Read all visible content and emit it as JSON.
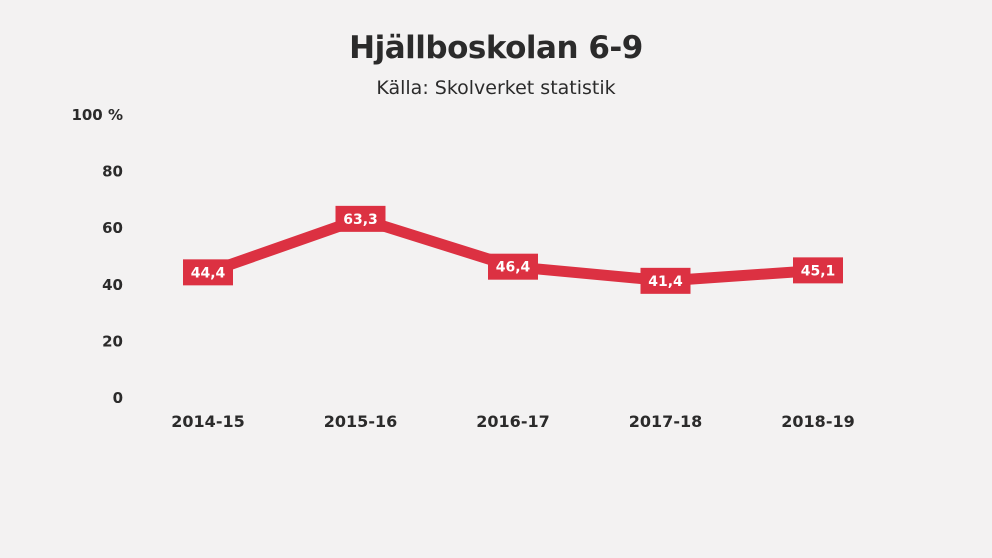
{
  "colors": {
    "background": "#f3f2f2",
    "line": "#dc3142",
    "text": "#2b2b2b",
    "label_text": "#ffffff"
  },
  "chart_data": {
    "type": "line",
    "title": "Hjällboskolan 6-9",
    "subtitle": "Källa: Skolverket statistik",
    "categories": [
      "2014-15",
      "2015-16",
      "2016-17",
      "2017-18",
      "2018-19"
    ],
    "series": [
      {
        "values": [
          44.4,
          63.3,
          46.4,
          41.4,
          45.1
        ],
        "labels": [
          "44,4",
          "63,3",
          "46,4",
          "41,4",
          "45,1"
        ]
      }
    ],
    "ylim": [
      0,
      100
    ],
    "yticks": [
      0,
      20,
      40,
      60,
      80,
      100
    ],
    "ytick_labels": [
      "0",
      "20",
      "40",
      "60",
      "80",
      "100 %"
    ],
    "grid": false,
    "legend": "none",
    "xlabel": "",
    "ylabel": ""
  }
}
